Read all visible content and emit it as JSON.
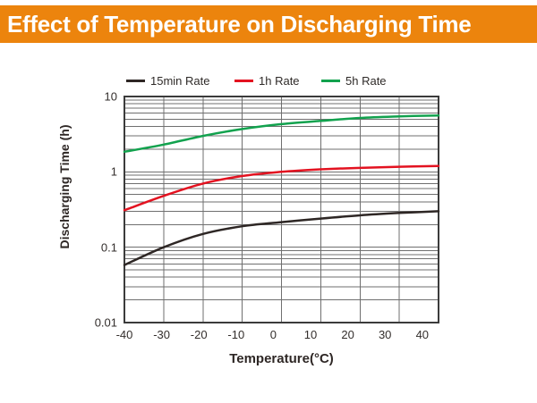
{
  "header": {
    "title": "Effect of Temperature on Discharging Time",
    "bg_color": "#EC840D",
    "text_color": "#FFFFFF"
  },
  "chart_data": {
    "type": "line",
    "title": "Effect of Temperature on Discharging Time",
    "xlabel": "Temperature(°C)",
    "ylabel": "Discharging Time (h)",
    "x_scale": "linear",
    "y_scale": "log",
    "xlim": [
      -40,
      40
    ],
    "ylim": [
      0.01,
      10
    ],
    "x_tick_labels": [
      "-40",
      "-30",
      "-20",
      "-10",
      "0",
      "10",
      "20",
      "30",
      "40"
    ],
    "y_tick_labels": [
      "10",
      "1",
      "0.1",
      "0.01"
    ],
    "y_tick_values": [
      10,
      1,
      0.1,
      0.01
    ],
    "grid": "major and log-minor gridlines on",
    "grid_color": "#6F6F6F",
    "border_color": "#3B3B3B",
    "legend_position": "top",
    "x": [
      -40,
      -30,
      -20,
      -10,
      0,
      10,
      20,
      30,
      40
    ],
    "series": [
      {
        "name": "15min Rate",
        "color": "#2E2725",
        "values": [
          0.058,
          0.1,
          0.15,
          0.19,
          0.215,
          0.24,
          0.265,
          0.285,
          0.3
        ]
      },
      {
        "name": "1h Rate",
        "color": "#E31220",
        "values": [
          0.31,
          0.48,
          0.7,
          0.88,
          1.0,
          1.08,
          1.13,
          1.17,
          1.2
        ]
      },
      {
        "name": "5h Rate",
        "color": "#12A24E",
        "values": [
          1.85,
          2.3,
          3.0,
          3.7,
          4.3,
          4.75,
          5.2,
          5.45,
          5.6
        ]
      }
    ]
  }
}
